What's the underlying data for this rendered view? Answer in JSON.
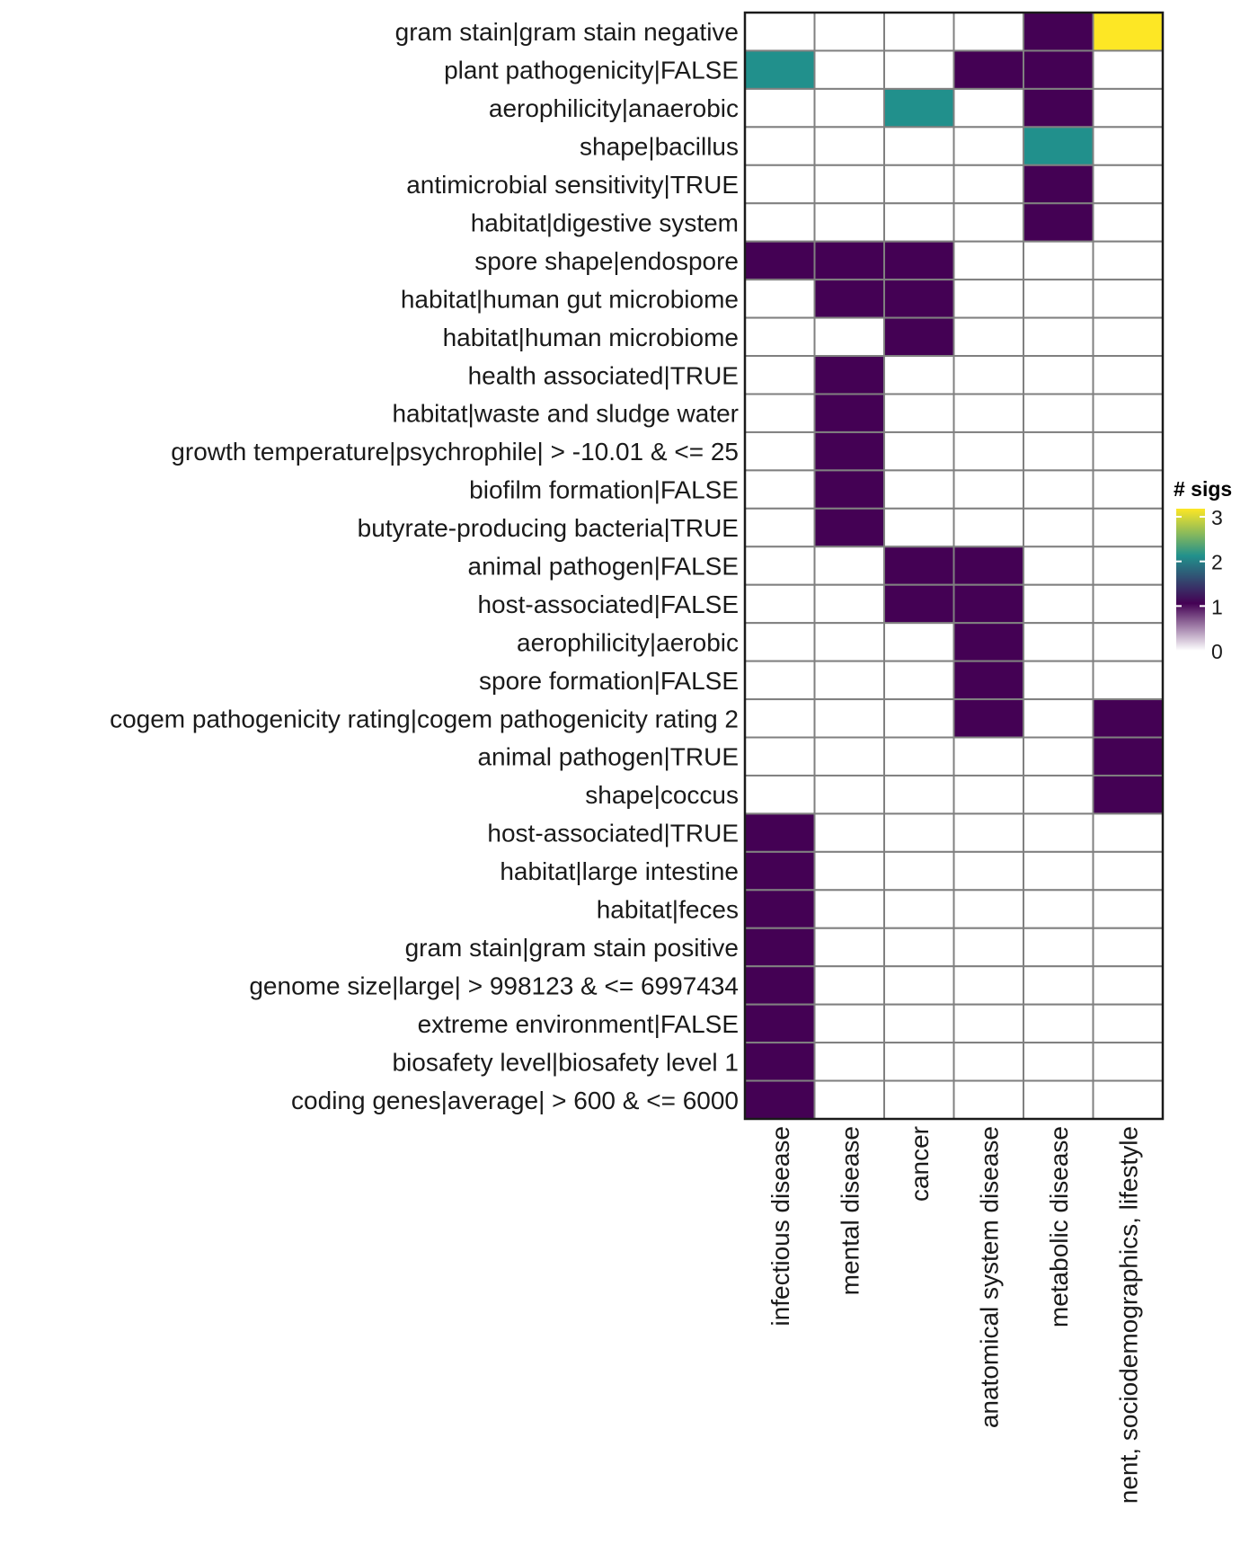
{
  "chart_data": {
    "type": "heatmap",
    "title": "",
    "xlabel": "",
    "ylabel": "",
    "x_categories": [
      "infectious disease",
      "mental disease",
      "cancer",
      "anatomical system disease",
      "metabolic disease",
      "nent, sociodemographics, lifestyle"
    ],
    "y_categories": [
      "gram stain|gram stain negative",
      "plant pathogenicity|FALSE",
      "aerophilicity|anaerobic",
      "shape|bacillus",
      "antimicrobial sensitivity|TRUE",
      "habitat|digestive system",
      "spore shape|endospore",
      "habitat|human gut microbiome",
      "habitat|human microbiome",
      "health associated|TRUE",
      "habitat|waste and sludge water",
      "growth temperature|psychrophile| > -10.01 & <= 25",
      "biofilm formation|FALSE",
      "butyrate-producing bacteria|TRUE",
      "animal pathogen|FALSE",
      "host-associated|FALSE",
      "aerophilicity|aerobic",
      "spore formation|FALSE",
      "cogem pathogenicity rating|cogem pathogenicity rating 2",
      "animal pathogen|TRUE",
      "shape|coccus",
      "host-associated|TRUE",
      "habitat|large intestine",
      "habitat|feces",
      "gram stain|gram stain positive",
      "genome size|large| > 998123 & <= 6997434",
      "extreme environment|FALSE",
      "biosafety level|biosafety level 1",
      "coding genes|average| > 600 & <= 6000"
    ],
    "values": [
      [
        0,
        0,
        0,
        0,
        1,
        3
      ],
      [
        2,
        0,
        0,
        1,
        1,
        0
      ],
      [
        0,
        0,
        2,
        0,
        1,
        0
      ],
      [
        0,
        0,
        0,
        0,
        2,
        0
      ],
      [
        0,
        0,
        0,
        0,
        1,
        0
      ],
      [
        0,
        0,
        0,
        0,
        1,
        0
      ],
      [
        1,
        1,
        1,
        0,
        0,
        0
      ],
      [
        0,
        1,
        1,
        0,
        0,
        0
      ],
      [
        0,
        0,
        1,
        0,
        0,
        0
      ],
      [
        0,
        1,
        0,
        0,
        0,
        0
      ],
      [
        0,
        1,
        0,
        0,
        0,
        0
      ],
      [
        0,
        1,
        0,
        0,
        0,
        0
      ],
      [
        0,
        1,
        0,
        0,
        0,
        0
      ],
      [
        0,
        1,
        0,
        0,
        0,
        0
      ],
      [
        0,
        0,
        1,
        1,
        0,
        0
      ],
      [
        0,
        0,
        1,
        1,
        0,
        0
      ],
      [
        0,
        0,
        0,
        1,
        0,
        0
      ],
      [
        0,
        0,
        0,
        1,
        0,
        0
      ],
      [
        0,
        0,
        0,
        1,
        0,
        1
      ],
      [
        0,
        0,
        0,
        0,
        0,
        1
      ],
      [
        0,
        0,
        0,
        0,
        0,
        1
      ],
      [
        1,
        0,
        0,
        0,
        0,
        0
      ],
      [
        1,
        0,
        0,
        0,
        0,
        0
      ],
      [
        1,
        0,
        0,
        0,
        0,
        0
      ],
      [
        1,
        0,
        0,
        0,
        0,
        0
      ],
      [
        1,
        0,
        0,
        0,
        0,
        0
      ],
      [
        1,
        0,
        0,
        0,
        0,
        0
      ],
      [
        1,
        0,
        0,
        0,
        0,
        0
      ],
      [
        1,
        0,
        0,
        0,
        0,
        0
      ]
    ],
    "color_scale": {
      "title": "# sigs",
      "range": [
        0,
        3
      ],
      "ticks": [
        0,
        1,
        2,
        3
      ],
      "tick_labels": [
        "0",
        "1",
        "2",
        "3"
      ],
      "stops": [
        {
          "value": 0,
          "color": "#ffffff"
        },
        {
          "value": 1,
          "color": "#440154"
        },
        {
          "value": 2,
          "color": "#21908c"
        },
        {
          "value": 3,
          "color": "#fde725"
        }
      ]
    },
    "cell_border_color": "#808080",
    "panel_border_color": "#1a1a1a",
    "legend_position": "right",
    "grid": false
  }
}
